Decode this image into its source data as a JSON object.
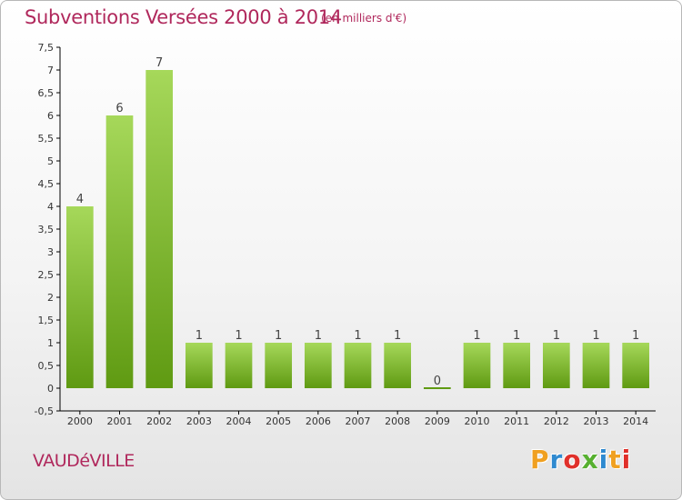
{
  "header": {
    "title": "Subventions Versées 2000 à 2014",
    "subtitle": "(en milliers d'€)"
  },
  "footer": {
    "commune": "VAUDéVILLE",
    "logo_text": "Proxiti",
    "logo_colors": [
      "#f0a020",
      "#2f8ad0",
      "#e0302a",
      "#57b030",
      "#2f8ad0",
      "#f0a020",
      "#e0302a"
    ]
  },
  "colors": {
    "bar_top": "#a6d85a",
    "bar_bottom": "#5f9a12",
    "axis": "#000000",
    "grid": "#cccccc",
    "title": "#b0285c"
  },
  "chart_data": {
    "type": "bar",
    "categories": [
      "2000",
      "2001",
      "2002",
      "2003",
      "2004",
      "2005",
      "2006",
      "2007",
      "2008",
      "2009",
      "2010",
      "2011",
      "2012",
      "2013",
      "2014"
    ],
    "values": [
      4,
      6,
      7,
      1,
      1,
      1,
      1,
      1,
      1,
      0,
      1,
      1,
      1,
      1,
      1
    ],
    "data_labels": [
      "4",
      "6",
      "7",
      "1",
      "1",
      "1",
      "1",
      "1",
      "1",
      "0",
      "1",
      "1",
      "1",
      "1",
      "1"
    ],
    "y_ticks": [
      -0.5,
      0,
      0.5,
      1,
      1.5,
      2,
      2.5,
      3,
      3.5,
      4,
      4.5,
      5,
      5.5,
      6,
      6.5,
      7,
      7.5
    ],
    "y_tick_labels": [
      "-0,5",
      "0",
      "0,5",
      "1",
      "1,5",
      "2",
      "2,5",
      "3",
      "3,5",
      "4",
      "4,5",
      "5",
      "5,5",
      "6",
      "6,5",
      "7",
      "7,5"
    ],
    "ylim": [
      -0.5,
      7.5
    ],
    "grid": false,
    "title": "Subventions Versées 2000 à 2014",
    "xlabel": "",
    "ylabel": ""
  }
}
